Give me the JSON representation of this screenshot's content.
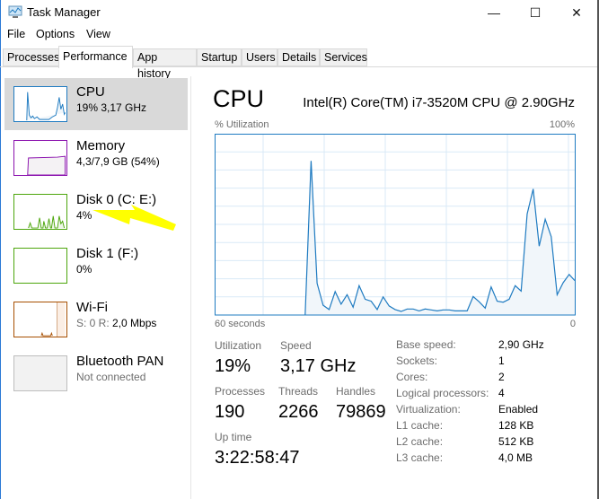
{
  "window": {
    "title": "Task Manager",
    "controls": {
      "minimize": "—",
      "maximize": "☐",
      "close": "✕"
    }
  },
  "menu": [
    "File",
    "Options",
    "View"
  ],
  "tabs": [
    {
      "label": "Processes",
      "selected": false
    },
    {
      "label": "Performance",
      "selected": true
    },
    {
      "label": "App history",
      "selected": false
    },
    {
      "label": "Startup",
      "selected": false
    },
    {
      "label": "Users",
      "selected": false
    },
    {
      "label": "Details",
      "selected": false
    },
    {
      "label": "Services",
      "selected": false
    }
  ],
  "sidebar": [
    {
      "title": "CPU",
      "sub": "19% 3,17 GHz",
      "color": "#1f7bc1",
      "selected": true
    },
    {
      "title": "Memory",
      "sub": "4,3/7,9 GB (54%)",
      "color": "#8b12ae"
    },
    {
      "title": "Disk 0 (C: E:)",
      "sub": "4%",
      "color": "#4da60c"
    },
    {
      "title": "Disk 1 (F:)",
      "sub": "0%",
      "color": "#4da60c"
    },
    {
      "title": "Wi-Fi",
      "sub_prefix": "S: 0 R:",
      "sub": "2,0 Mbps",
      "color": "#a74f01"
    },
    {
      "title": "Bluetooth PAN",
      "sub": "Not connected",
      "color": "#bdbdbd"
    }
  ],
  "annotation": {
    "type": "arrow",
    "color": "#ffff00",
    "points_to": "Disk 0 (C: E:)"
  },
  "main": {
    "heading": "CPU",
    "cpu_name": "Intel(R) Core(TM) i7-3520M CPU @ 2.90GHz",
    "graph_label": "% Utilization",
    "graph_max": "100%",
    "graph_time": "60 seconds",
    "graph_min": "0",
    "stats": {
      "utilization_label": "Utilization",
      "utilization": "19%",
      "speed_label": "Speed",
      "speed": "3,17 GHz",
      "processes_label": "Processes",
      "processes": "190",
      "threads_label": "Threads",
      "threads": "2266",
      "handles_label": "Handles",
      "handles": "79869",
      "uptime_label": "Up time",
      "uptime": "3:22:58:47"
    },
    "details": [
      {
        "label": "Base speed:",
        "value": "2,90 GHz"
      },
      {
        "label": "Sockets:",
        "value": "1"
      },
      {
        "label": "Cores:",
        "value": "2"
      },
      {
        "label": "Logical processors:",
        "value": "4"
      },
      {
        "label": "Virtualization:",
        "value": "Enabled"
      },
      {
        "label": "L1 cache:",
        "value": "128 KB"
      },
      {
        "label": "L2 cache:",
        "value": "512 KB"
      },
      {
        "label": "L3 cache:",
        "value": "4,0 MB"
      }
    ]
  },
  "chart_data": {
    "type": "area",
    "ylabel": "% Utilization",
    "ylim": [
      0,
      100
    ],
    "xlim_seconds_ago": [
      60,
      0
    ],
    "grid": true,
    "color": "#1f7bc1",
    "x_seconds_ago": [
      45,
      44,
      43,
      42,
      41,
      40,
      39,
      38,
      37,
      36,
      35,
      34,
      33,
      32,
      31,
      30,
      29,
      28,
      27,
      26,
      25,
      24,
      23,
      22,
      21,
      20,
      19,
      18,
      17,
      16,
      15,
      14,
      13,
      12,
      11,
      10,
      9,
      8,
      7,
      6,
      5,
      4,
      3,
      2,
      1,
      0
    ],
    "values": [
      0,
      85,
      17.5,
      5.4,
      3,
      12.9,
      6,
      11.2,
      4.3,
      16.2,
      8.7,
      7.6,
      3,
      10,
      5,
      3,
      2,
      3.3,
      3.3,
      2.3,
      3.3,
      2.8,
      2.3,
      2.8,
      2.8,
      2.3,
      2.3,
      2.3,
      10.2,
      7.3,
      3.8,
      15.5,
      7.6,
      7.1,
      8.7,
      16.2,
      13.2,
      55.8,
      69.5,
      38,
      52.8,
      43.2,
      11.2,
      17.8,
      22.4,
      19
    ]
  }
}
